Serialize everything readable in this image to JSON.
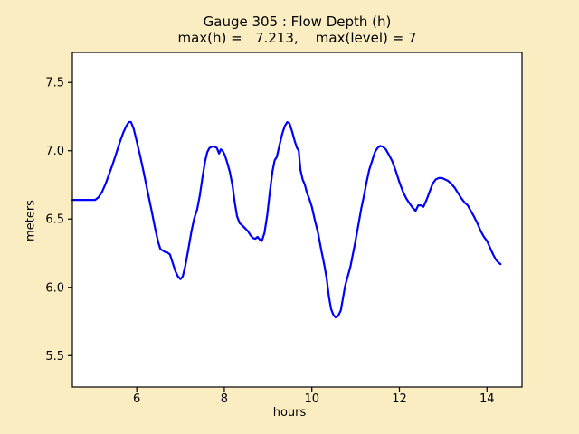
{
  "figure": {
    "background_color": "#FBEDC2",
    "plot_background_color": "#FFFFFF",
    "frame_color": "#000000",
    "text_color": "#000000"
  },
  "chart_data": {
    "type": "line",
    "title": "Gauge 305 : Flow Depth (h)",
    "subtitle": "max(h) =   7.213,    max(level) = 7",
    "xlabel": "hours",
    "ylabel": "meters",
    "max_h": 7.213,
    "max_level": 7,
    "xlim": [
      4.53,
      14.8
    ],
    "ylim": [
      5.27,
      7.72
    ],
    "xticks": [
      6,
      8,
      10,
      12,
      14
    ],
    "xticklabels": [
      "6",
      "8",
      "10",
      "12",
      "14"
    ],
    "yticks": [
      5.5,
      6.0,
      6.5,
      7.0,
      7.5
    ],
    "yticklabels": [
      "5.5",
      "6.0",
      "6.5",
      "7.0",
      "7.5"
    ],
    "grid": false,
    "legend": null,
    "series": [
      {
        "name": "flow depth (h)",
        "color": "#0000FF",
        "points": [
          [
            4.53,
            6.64
          ],
          [
            4.75,
            6.64
          ],
          [
            4.95,
            6.64
          ],
          [
            5.05,
            6.64
          ],
          [
            5.13,
            6.66
          ],
          [
            5.21,
            6.7
          ],
          [
            5.29,
            6.76
          ],
          [
            5.37,
            6.83
          ],
          [
            5.45,
            6.9
          ],
          [
            5.53,
            6.98
          ],
          [
            5.61,
            7.06
          ],
          [
            5.69,
            7.13
          ],
          [
            5.76,
            7.18
          ],
          [
            5.82,
            7.21
          ],
          [
            5.87,
            7.21
          ],
          [
            5.93,
            7.16
          ],
          [
            6.0,
            7.07
          ],
          [
            6.08,
            6.96
          ],
          [
            6.16,
            6.84
          ],
          [
            6.25,
            6.7
          ],
          [
            6.34,
            6.56
          ],
          [
            6.42,
            6.43
          ],
          [
            6.49,
            6.33
          ],
          [
            6.54,
            6.28
          ],
          [
            6.59,
            6.27
          ],
          [
            6.64,
            6.26
          ],
          [
            6.7,
            6.255
          ],
          [
            6.76,
            6.24
          ],
          [
            6.82,
            6.18
          ],
          [
            6.88,
            6.12
          ],
          [
            6.94,
            6.08
          ],
          [
            7.0,
            6.06
          ],
          [
            7.05,
            6.08
          ],
          [
            7.11,
            6.16
          ],
          [
            7.18,
            6.28
          ],
          [
            7.25,
            6.41
          ],
          [
            7.31,
            6.5
          ],
          [
            7.38,
            6.57
          ],
          [
            7.44,
            6.67
          ],
          [
            7.5,
            6.8
          ],
          [
            7.56,
            6.92
          ],
          [
            7.61,
            6.99
          ],
          [
            7.66,
            7.02
          ],
          [
            7.72,
            7.03
          ],
          [
            7.78,
            7.03
          ],
          [
            7.83,
            7.02
          ],
          [
            7.88,
            6.98
          ],
          [
            7.92,
            7.01
          ],
          [
            7.96,
            7.0
          ],
          [
            8.01,
            6.97
          ],
          [
            8.07,
            6.91
          ],
          [
            8.13,
            6.84
          ],
          [
            8.19,
            6.74
          ],
          [
            8.24,
            6.62
          ],
          [
            8.29,
            6.52
          ],
          [
            8.35,
            6.47
          ],
          [
            8.42,
            6.45
          ],
          [
            8.48,
            6.43
          ],
          [
            8.54,
            6.41
          ],
          [
            8.6,
            6.38
          ],
          [
            8.66,
            6.36
          ],
          [
            8.71,
            6.355
          ],
          [
            8.76,
            6.37
          ],
          [
            8.81,
            6.35
          ],
          [
            8.86,
            6.34
          ],
          [
            8.92,
            6.4
          ],
          [
            8.98,
            6.53
          ],
          [
            9.04,
            6.7
          ],
          [
            9.1,
            6.85
          ],
          [
            9.15,
            6.93
          ],
          [
            9.2,
            6.955
          ],
          [
            9.26,
            7.04
          ],
          [
            9.32,
            7.12
          ],
          [
            9.38,
            7.18
          ],
          [
            9.44,
            7.21
          ],
          [
            9.49,
            7.2
          ],
          [
            9.55,
            7.14
          ],
          [
            9.61,
            7.07
          ],
          [
            9.66,
            7.02
          ],
          [
            9.7,
            7.0
          ],
          [
            9.74,
            6.86
          ],
          [
            9.79,
            6.79
          ],
          [
            9.84,
            6.75
          ],
          [
            9.89,
            6.69
          ],
          [
            9.94,
            6.65
          ],
          [
            10.0,
            6.59
          ],
          [
            10.07,
            6.49
          ],
          [
            10.14,
            6.4
          ],
          [
            10.21,
            6.28
          ],
          [
            10.28,
            6.17
          ],
          [
            10.34,
            6.06
          ],
          [
            10.39,
            5.93
          ],
          [
            10.44,
            5.84
          ],
          [
            10.49,
            5.8
          ],
          [
            10.54,
            5.78
          ],
          [
            10.6,
            5.79
          ],
          [
            10.66,
            5.83
          ],
          [
            10.71,
            5.92
          ],
          [
            10.76,
            6.01
          ],
          [
            10.82,
            6.08
          ],
          [
            10.88,
            6.15
          ],
          [
            10.93,
            6.23
          ],
          [
            10.98,
            6.31
          ],
          [
            11.03,
            6.4
          ],
          [
            11.08,
            6.49
          ],
          [
            11.13,
            6.58
          ],
          [
            11.19,
            6.67
          ],
          [
            11.25,
            6.77
          ],
          [
            11.31,
            6.86
          ],
          [
            11.38,
            6.93
          ],
          [
            11.44,
            6.99
          ],
          [
            11.5,
            7.02
          ],
          [
            11.56,
            7.035
          ],
          [
            11.62,
            7.03
          ],
          [
            11.69,
            7.01
          ],
          [
            11.76,
            6.97
          ],
          [
            11.84,
            6.92
          ],
          [
            11.92,
            6.85
          ],
          [
            12.0,
            6.77
          ],
          [
            12.08,
            6.7
          ],
          [
            12.16,
            6.65
          ],
          [
            12.24,
            6.61
          ],
          [
            12.31,
            6.58
          ],
          [
            12.37,
            6.56
          ],
          [
            12.43,
            6.6
          ],
          [
            12.49,
            6.6
          ],
          [
            12.55,
            6.59
          ],
          [
            12.62,
            6.64
          ],
          [
            12.69,
            6.7
          ],
          [
            12.76,
            6.76
          ],
          [
            12.83,
            6.79
          ],
          [
            12.9,
            6.8
          ],
          [
            12.97,
            6.8
          ],
          [
            13.04,
            6.79
          ],
          [
            13.11,
            6.78
          ],
          [
            13.18,
            6.76
          ],
          [
            13.26,
            6.73
          ],
          [
            13.34,
            6.69
          ],
          [
            13.42,
            6.65
          ],
          [
            13.49,
            6.62
          ],
          [
            13.56,
            6.6
          ],
          [
            13.63,
            6.56
          ],
          [
            13.7,
            6.52
          ],
          [
            13.78,
            6.47
          ],
          [
            13.86,
            6.41
          ],
          [
            13.93,
            6.37
          ],
          [
            14.0,
            6.34
          ],
          [
            14.07,
            6.29
          ],
          [
            14.14,
            6.24
          ],
          [
            14.21,
            6.2
          ],
          [
            14.27,
            6.18
          ],
          [
            14.31,
            6.17
          ]
        ]
      }
    ]
  }
}
